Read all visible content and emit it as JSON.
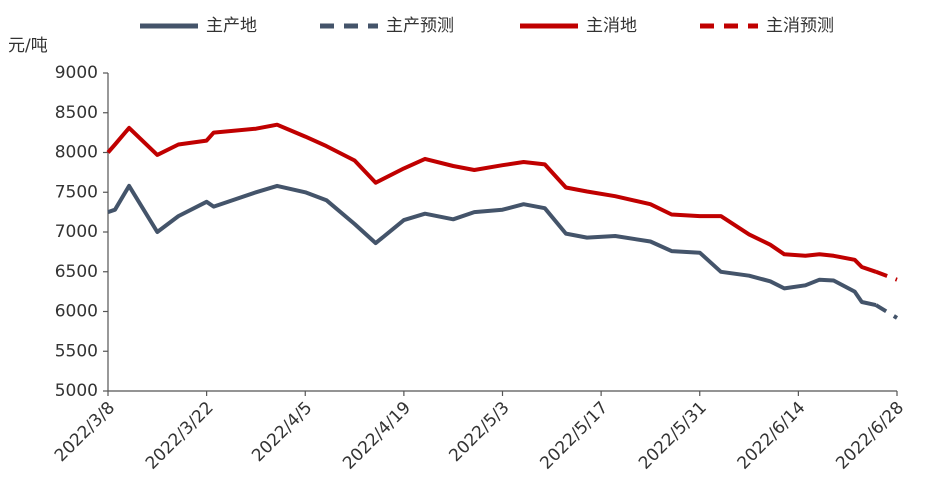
{
  "chart_data": {
    "type": "line",
    "y_label": "元/吨",
    "x": [
      "2022/3/8",
      "2022/3/9",
      "2022/3/11",
      "2022/3/15",
      "2022/3/18",
      "2022/3/22",
      "2022/3/23",
      "2022/3/29",
      "2022/4/1",
      "2022/4/5",
      "2022/4/8",
      "2022/4/12",
      "2022/4/15",
      "2022/4/19",
      "2022/4/22",
      "2022/4/26",
      "2022/4/29",
      "2022/5/3",
      "2022/5/6",
      "2022/5/9",
      "2022/5/12",
      "2022/5/15",
      "2022/5/19",
      "2022/5/24",
      "2022/5/27",
      "2022/5/31",
      "2022/6/3",
      "2022/6/7",
      "2022/6/10",
      "2022/6/12",
      "2022/6/15",
      "2022/6/17",
      "2022/6/19",
      "2022/6/22",
      "2022/6/23",
      "2022/6/25",
      "2022/6/28"
    ],
    "series": [
      {
        "name": "主产地",
        "color": "#44546a",
        "dashed": false,
        "values": [
          7250,
          7280,
          7580,
          7000,
          7200,
          7380,
          7320,
          7500,
          7580,
          7500,
          7400,
          7100,
          6860,
          7150,
          7230,
          7160,
          7250,
          7280,
          7350,
          7300,
          6980,
          6930,
          6950,
          6880,
          6760,
          6740,
          6500,
          6450,
          6380,
          6290,
          6330,
          6400,
          6390,
          6250,
          6120,
          6080,
          null
        ]
      },
      {
        "name": "主产预测",
        "color": "#44546a",
        "dashed": true,
        "values": [
          null,
          null,
          null,
          null,
          null,
          null,
          null,
          null,
          null,
          null,
          null,
          null,
          null,
          null,
          null,
          null,
          null,
          null,
          null,
          null,
          null,
          null,
          null,
          null,
          null,
          null,
          null,
          null,
          null,
          null,
          null,
          null,
          null,
          null,
          null,
          6080,
          5920
        ]
      },
      {
        "name": "主消地",
        "color": "#c00000",
        "dashed": false,
        "values": [
          8000,
          8100,
          8310,
          7970,
          8100,
          8150,
          8250,
          8300,
          8350,
          8200,
          8080,
          7900,
          7620,
          7800,
          7920,
          7830,
          7780,
          7840,
          7880,
          7850,
          7560,
          7510,
          7450,
          7350,
          7220,
          7200,
          7200,
          6970,
          6840,
          6720,
          6700,
          6720,
          6700,
          6650,
          6560,
          6500,
          null
        ]
      },
      {
        "name": "主消预测",
        "color": "#c00000",
        "dashed": true,
        "values": [
          null,
          null,
          null,
          null,
          null,
          null,
          null,
          null,
          null,
          null,
          null,
          null,
          null,
          null,
          null,
          null,
          null,
          null,
          null,
          null,
          null,
          null,
          null,
          null,
          null,
          null,
          null,
          null,
          null,
          null,
          null,
          null,
          null,
          null,
          null,
          6500,
          6400
        ]
      }
    ],
    "xlim": [
      "2022/3/8",
      "2022/6/28"
    ],
    "xticks": [
      "2022/3/8",
      "2022/3/22",
      "2022/4/5",
      "2022/4/19",
      "2022/5/3",
      "2022/5/17",
      "2022/5/31",
      "2022/6/14",
      "2022/6/28"
    ],
    "ylim": [
      5000,
      9000
    ],
    "yticks": [
      5000,
      5500,
      6000,
      6500,
      7000,
      7500,
      8000,
      8500,
      9000
    ],
    "grid": false
  }
}
